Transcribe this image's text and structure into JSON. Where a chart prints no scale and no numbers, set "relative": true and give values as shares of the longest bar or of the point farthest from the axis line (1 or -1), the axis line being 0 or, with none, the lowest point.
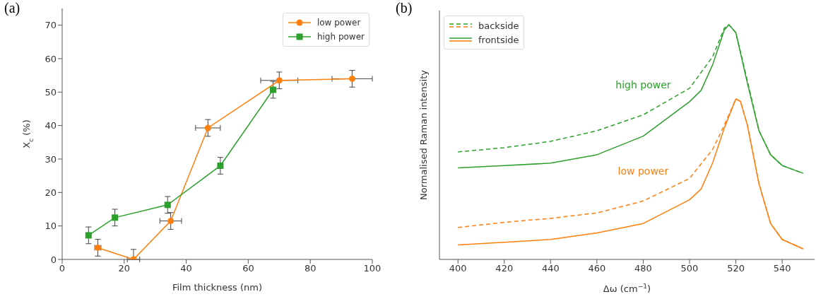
{
  "chart_data": [
    {
      "type": "line",
      "title": "(a)",
      "xlabel": "Film thickness (nm)",
      "ylabel": "X$_{c}$ (%)",
      "xlim": [
        0,
        100
      ],
      "xticks": [
        0,
        20,
        40,
        60,
        80,
        100
      ],
      "ylim": [
        0,
        75
      ],
      "yticks": [
        0,
        10,
        20,
        30,
        40,
        50,
        60,
        70
      ],
      "grid": false,
      "legend": "top right",
      "series": [
        {
          "name": "low power",
          "color": "#ff7f0e",
          "marker": "circle",
          "x": [
            11.5,
            23,
            35,
            47,
            70,
            93.5
          ],
          "values": [
            3.5,
            0,
            11.5,
            39.3,
            53.5,
            54
          ],
          "errors": [
            2.5,
            [
              0,
              3
            ],
            2.5,
            2.5,
            2.5,
            2.5
          ],
          "xerrors": [
            1,
            2,
            3.5,
            4,
            6,
            6.5
          ]
        },
        {
          "name": "high power",
          "color": "#2ca02c",
          "marker": "square",
          "x": [
            8.5,
            17,
            34,
            51,
            68
          ],
          "values": [
            7.2,
            12.5,
            16.3,
            28,
            50.7
          ],
          "errors": [
            2.5,
            2.5,
            2.5,
            2.5,
            2.5
          ]
        }
      ]
    },
    {
      "type": "line",
      "title": "(b)",
      "xlabel": "Δω (cm$^{−1}$)",
      "ylabel": "Normalised Raman intensity",
      "relative": true,
      "xlim": [
        392,
        554
      ],
      "xticks": [
        400,
        420,
        440,
        460,
        480,
        500,
        520,
        540
      ],
      "grid": false,
      "legend": "top left",
      "marker": "none",
      "annotations": [
        "high power",
        "low power"
      ],
      "series": [
        {
          "name": "backside",
          "color": "#2ca02c",
          "line_style": "dashed",
          "x": [
            400,
            420,
            440,
            460,
            480,
            500,
            510,
            515,
            517,
            520,
            525,
            530,
            535,
            540,
            549
          ],
          "values": [
            0.458,
            0.476,
            0.503,
            0.548,
            0.616,
            0.729,
            0.864,
            0.985,
            1,
            0.966,
            0.76,
            0.548,
            0.446,
            0.4,
            0.367
          ]
        },
        {
          "name": "frontside",
          "color": "#2ca02c",
          "line_style": "solid",
          "x": [
            400,
            420,
            440,
            460,
            480,
            500,
            505,
            510,
            515,
            517,
            520,
            525,
            530,
            535,
            540,
            549
          ],
          "values": [
            0.39,
            0.4,
            0.41,
            0.446,
            0.525,
            0.672,
            0.72,
            0.83,
            0.977,
            1,
            0.966,
            0.75,
            0.548,
            0.446,
            0.4,
            0.367
          ]
        },
        {
          "color": "#ff7f0e",
          "line_style": "dashed",
          "x": [
            400,
            420,
            440,
            460,
            480,
            500,
            510,
            515,
            520,
            522,
            525,
            530,
            535,
            540,
            549
          ],
          "values": [
            0.136,
            0.158,
            0.175,
            0.198,
            0.249,
            0.345,
            0.469,
            0.571,
            0.684,
            0.673,
            0.571,
            0.322,
            0.153,
            0.085,
            0.045
          ]
        },
        {
          "color": "#ff7f0e",
          "line_style": "solid",
          "x": [
            400,
            420,
            440,
            460,
            480,
            500,
            505,
            510,
            515,
            520,
            522,
            525,
            530,
            535,
            540,
            549
          ],
          "values": [
            0.062,
            0.073,
            0.085,
            0.113,
            0.153,
            0.254,
            0.3,
            0.412,
            0.559,
            0.684,
            0.673,
            0.571,
            0.322,
            0.153,
            0.085,
            0.045
          ]
        }
      ]
    }
  ]
}
